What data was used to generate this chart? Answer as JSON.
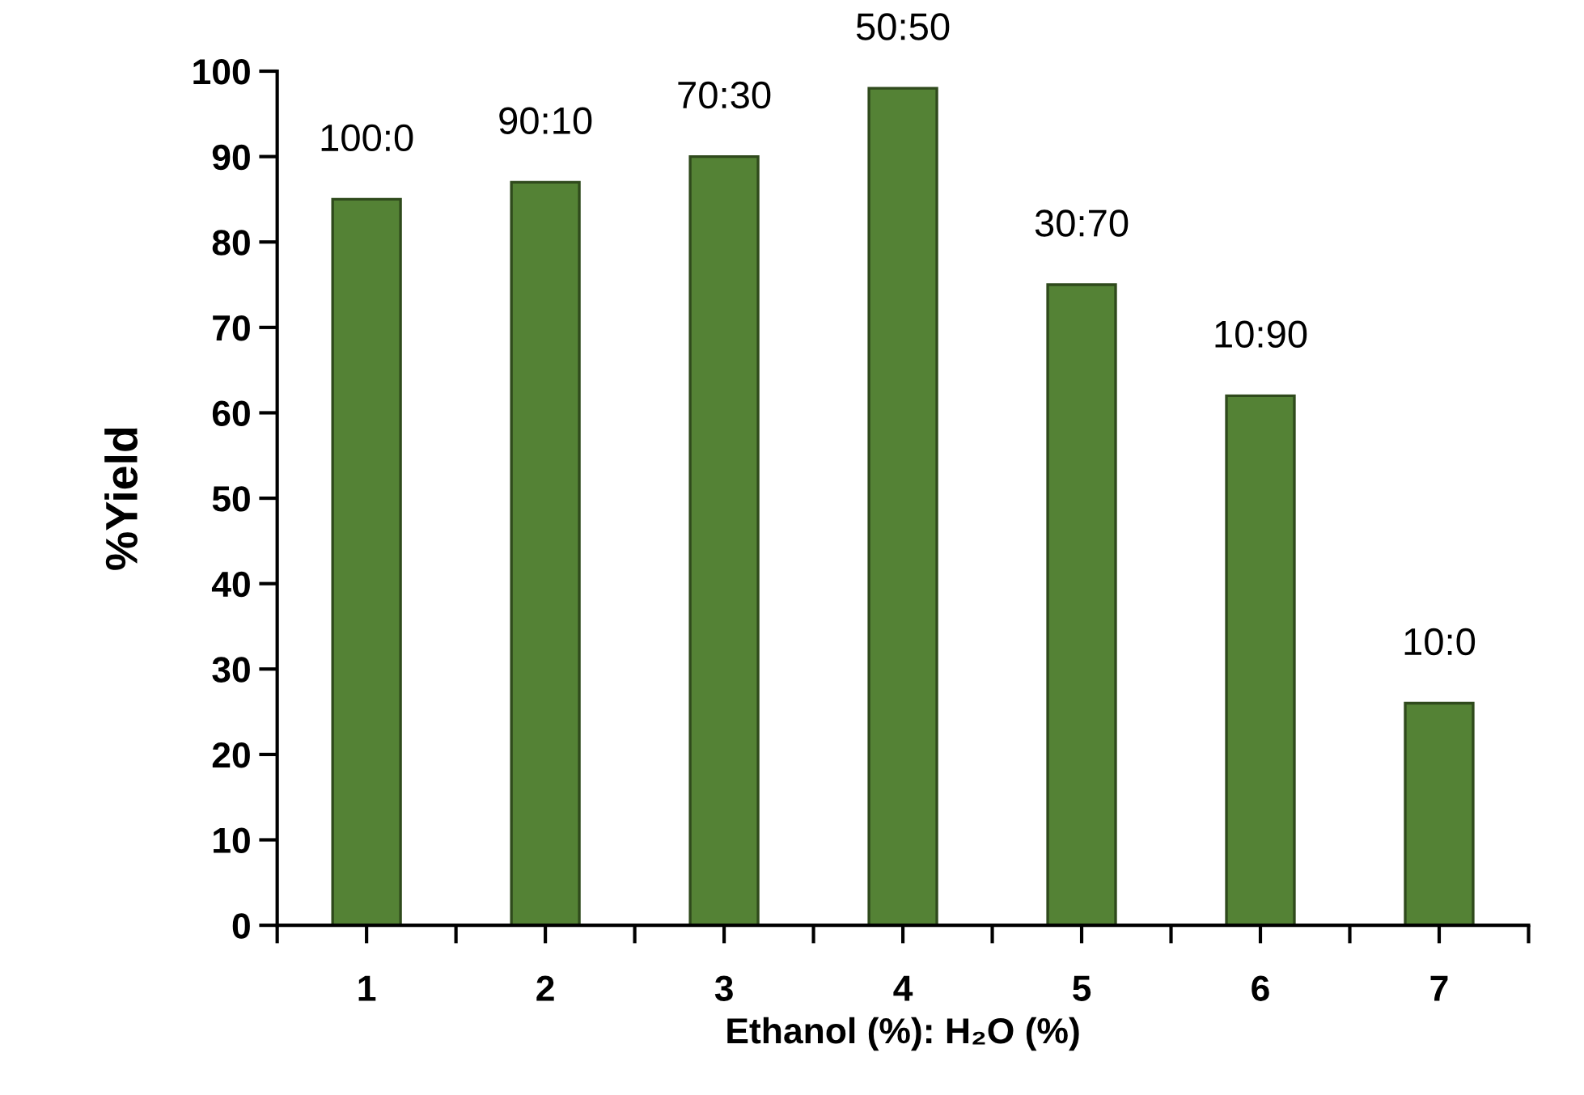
{
  "chart_data": {
    "type": "bar",
    "categories": [
      "1",
      "2",
      "3",
      "4",
      "5",
      "6",
      "7"
    ],
    "values": [
      85,
      87,
      90,
      98,
      75,
      62,
      26
    ],
    "color": "#548235",
    "xlabel": "Ethanol (%): H₂O (%)",
    "ylabel": "%Yield",
    "ylim": [
      0,
      100
    ],
    "yticks": [
      0,
      10,
      20,
      30,
      40,
      50,
      60,
      70,
      80,
      90,
      100
    ],
    "annotations": [
      {
        "text": "100:0",
        "x": "1",
        "y": 85
      },
      {
        "text": "90:10",
        "x": "2",
        "y": 87
      },
      {
        "text": "70:30",
        "x": "3",
        "y": 90
      },
      {
        "text": "50:50",
        "x": "4",
        "y": 98
      },
      {
        "text": "30:70",
        "x": "5",
        "y": 75
      },
      {
        "text": "10:90",
        "x": "6",
        "y": 62
      },
      {
        "text": "10:0",
        "x": "7",
        "y": 26
      }
    ],
    "grid": false,
    "legend": false
  }
}
